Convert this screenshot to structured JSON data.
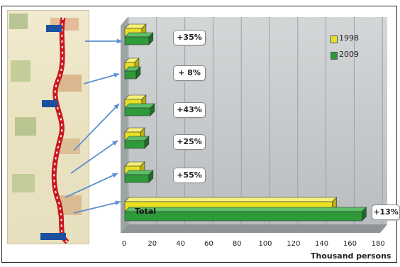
{
  "chart_data": {
    "type": "bar",
    "orientation": "horizontal",
    "categories": [
      "",
      "",
      "",
      "",
      "",
      "Total"
    ],
    "series": [
      {
        "name": "1998",
        "color": "#e8e020",
        "values": [
          12,
          7,
          12,
          11,
          11,
          147
        ]
      },
      {
        "name": "2009",
        "color": "#2f9a3a",
        "values": [
          17,
          8,
          18,
          14,
          17,
          168
        ]
      }
    ],
    "annotations": [
      "+35%",
      "+ 8%",
      "+43%",
      "+25%",
      "+55%",
      "+13%"
    ],
    "xlabel": "Thousand persons",
    "xticks": [
      0,
      20,
      40,
      60,
      80,
      100,
      120,
      140,
      160,
      180
    ],
    "xlim": [
      0,
      180
    ],
    "grid": true,
    "legend": "top-right",
    "style": "3d"
  },
  "map": {
    "description_icon": "railway-map-icon",
    "route_color": "#c8181e"
  }
}
